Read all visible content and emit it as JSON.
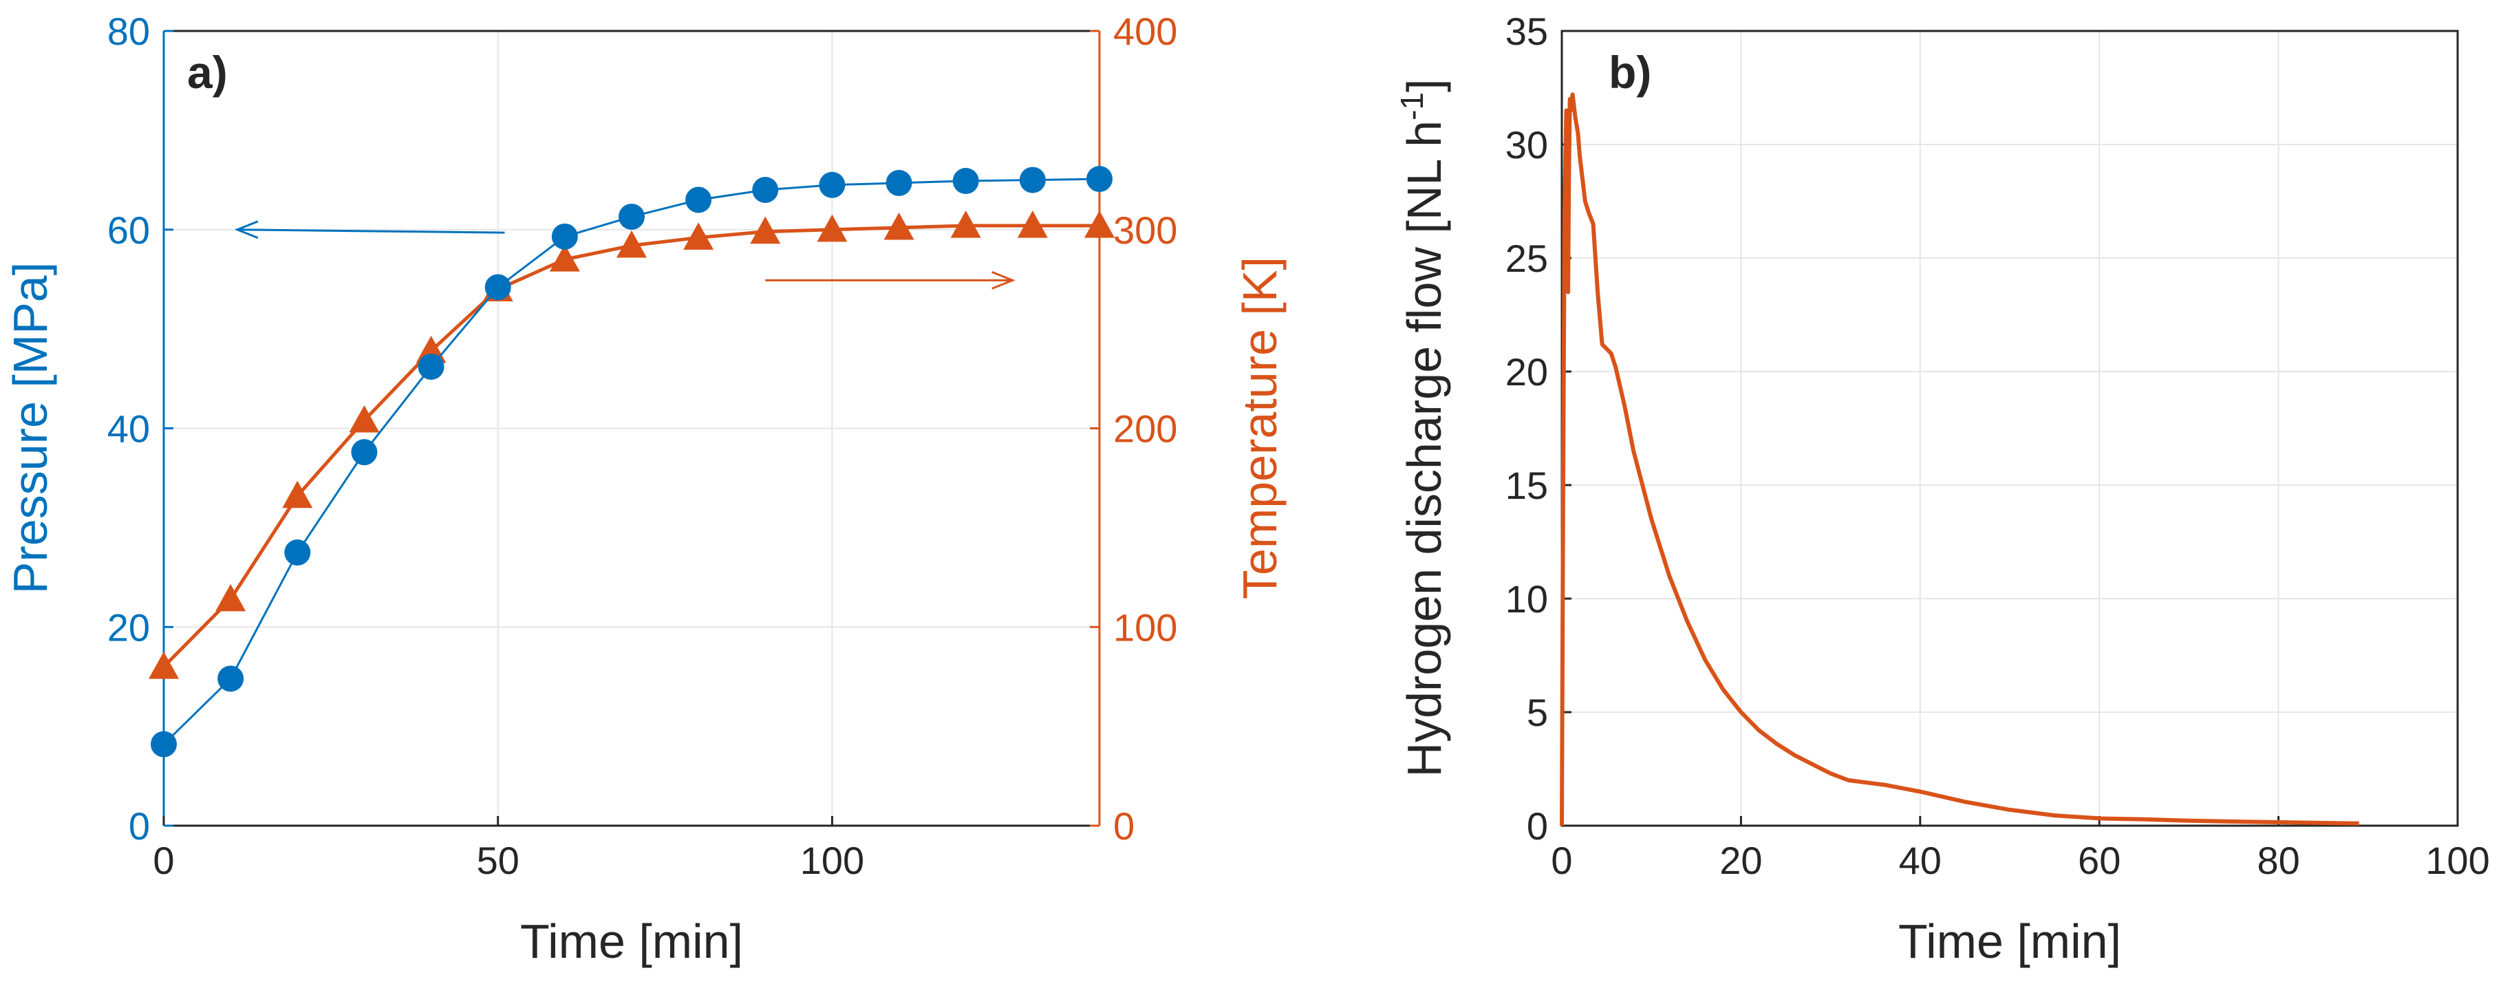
{
  "colors": {
    "pressure": "#0072BD",
    "temperature": "#D95319",
    "flow": "#D95319",
    "axis": "#262626",
    "grid": "#e6e6e6"
  },
  "chart_data": [
    {
      "type": "line",
      "panel_label": "a)",
      "title": "",
      "xlabel": "Time [min]",
      "ylabel": "Pressure [MPa]",
      "y2label": "Temperature [K]",
      "xlim": [
        0,
        140
      ],
      "ylim": [
        0,
        80
      ],
      "y2lim": [
        0,
        400
      ],
      "xticks": [
        "0",
        "50",
        "100"
      ],
      "xtick_values": [
        0,
        50,
        100
      ],
      "yticks": [
        "0",
        "20",
        "40",
        "60",
        "80"
      ],
      "ytick_values": [
        0,
        20,
        40,
        60,
        80
      ],
      "y2ticks": [
        "0",
        "100",
        "200",
        "300",
        "400"
      ],
      "y2tick_values": [
        0,
        100,
        200,
        300,
        400
      ],
      "grid": true,
      "series": [
        {
          "name": "Pressure",
          "axis": "left",
          "marker": "circle",
          "x": [
            0,
            10,
            20,
            30,
            40,
            50,
            60,
            70,
            80,
            90,
            100,
            110,
            120,
            130,
            140
          ],
          "values": [
            8.2,
            14.8,
            27.5,
            37.6,
            46.2,
            54.2,
            59.3,
            61.3,
            63.0,
            64.0,
            64.5,
            64.7,
            64.9,
            65.0,
            65.1
          ]
        },
        {
          "name": "Temperature",
          "axis": "right",
          "marker": "triangle",
          "x": [
            0,
            10,
            20,
            30,
            40,
            50,
            60,
            70,
            80,
            90,
            100,
            110,
            120,
            130,
            140
          ],
          "values": [
            80,
            114,
            166,
            204,
            239,
            270,
            285,
            292,
            296,
            299,
            300,
            301,
            302,
            302,
            302
          ]
        }
      ],
      "annotations": [
        {
          "type": "arrow",
          "direction": "left",
          "refers_to": "Pressure",
          "from": [
            51,
            59.7
          ],
          "to": [
            11,
            60
          ]
        },
        {
          "type": "arrow",
          "direction": "right",
          "refers_to": "Temperature",
          "from": [
            90,
            274.5
          ],
          "to": [
            127,
            274.5
          ]
        }
      ]
    },
    {
      "type": "line",
      "panel_label": "b)",
      "title": "",
      "xlabel": "Time [min]",
      "ylabel": "Hydrogen discharge flow [NL h",
      "ylabel_sup": "-1",
      "ylabel_end": "]",
      "xlim": [
        0,
        100
      ],
      "ylim": [
        0,
        35
      ],
      "xticks": [
        "0",
        "20",
        "40",
        "60",
        "80",
        "100"
      ],
      "xtick_values": [
        0,
        20,
        40,
        60,
        80,
        100
      ],
      "yticks": [
        "0",
        "5",
        "10",
        "15",
        "20",
        "25",
        "30",
        "35"
      ],
      "ytick_values": [
        0,
        5,
        10,
        15,
        20,
        25,
        30,
        35
      ],
      "grid": true,
      "series": [
        {
          "name": "Hydrogen discharge flow",
          "x": [
            0,
            0.05,
            0.15,
            0.3,
            0.5,
            0.6,
            0.7,
            0.8,
            0.9,
            1.0,
            1.2,
            1.5,
            1.8,
            2.0,
            2.3,
            2.6,
            3.0,
            3.5,
            4.0,
            4.5,
            5.0,
            5.5,
            6.0,
            7.0,
            8.0,
            9.0,
            10,
            12,
            14,
            16,
            18,
            20,
            22,
            24,
            26,
            28,
            30,
            32,
            34,
            36,
            38,
            40,
            45,
            50,
            55,
            60,
            65,
            70,
            75,
            80,
            85,
            89
          ],
          "values": [
            0,
            5,
            15,
            27,
            31.5,
            25,
            23.5,
            29,
            32,
            31.5,
            32.2,
            31.2,
            30.5,
            29.5,
            28.5,
            27.5,
            27,
            26.5,
            23.5,
            21.2,
            21.0,
            20.8,
            20.2,
            18.5,
            16.5,
            15.0,
            13.5,
            11.0,
            9.0,
            7.3,
            6.0,
            5.0,
            4.2,
            3.6,
            3.1,
            2.7,
            2.3,
            2.0,
            1.9,
            1.8,
            1.65,
            1.5,
            1.05,
            0.7,
            0.45,
            0.32,
            0.28,
            0.22,
            0.18,
            0.15,
            0.12,
            0.1
          ]
        }
      ]
    }
  ]
}
